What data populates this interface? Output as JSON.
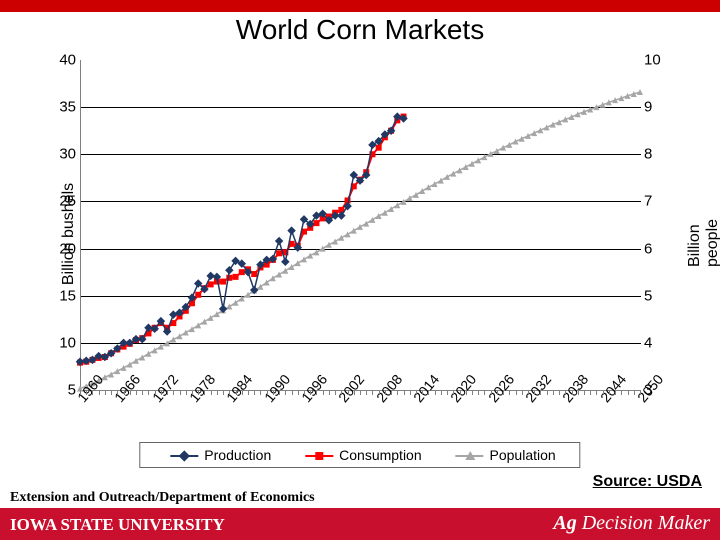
{
  "title": "World Corn Markets",
  "source_label": "Source: USDA",
  "footer": {
    "university": "IOWA STATE UNIVERSITY",
    "dept": "Extension and Outreach/Department of Economics",
    "brand": "Ag Decision Maker"
  },
  "chart": {
    "type": "line-scatter-dual-axis",
    "background_color": "#ffffff",
    "grid_color": "#000000",
    "axis_color": "#808080",
    "left_axis": {
      "label": "Billion bushels",
      "min": 5,
      "max": 40,
      "step": 5,
      "fontsize": 15
    },
    "right_axis": {
      "label": "Billion people",
      "min": 3,
      "max": 10,
      "step": 1,
      "fontsize": 15
    },
    "x_axis": {
      "start": 1960,
      "end": 2050,
      "label_step": 6,
      "tick_step": 1,
      "rotation": -50,
      "fontsize": 14
    },
    "legend": {
      "items": [
        {
          "label": "Production",
          "marker": "diamond",
          "color": "#203864",
          "line_color": "#203864"
        },
        {
          "label": "Consumption",
          "marker": "square",
          "color": "#ff0000",
          "line_color": "#ff0000"
        },
        {
          "label": "Population",
          "marker": "triangle",
          "color": "#a6a6a6",
          "line_color": "#a6a6a6"
        }
      ],
      "border_color": "#666666",
      "fontsize": 14
    },
    "series": {
      "production": {
        "axis": "left",
        "color": "#203864",
        "marker": "diamond",
        "marker_size": 6,
        "line_width": 1.5,
        "data": [
          [
            1960,
            8.0
          ],
          [
            1961,
            8.1
          ],
          [
            1962,
            8.2
          ],
          [
            1963,
            8.6
          ],
          [
            1964,
            8.5
          ],
          [
            1965,
            8.9
          ],
          [
            1966,
            9.4
          ],
          [
            1967,
            10.0
          ],
          [
            1968,
            10.0
          ],
          [
            1969,
            10.4
          ],
          [
            1970,
            10.4
          ],
          [
            1971,
            11.6
          ],
          [
            1972,
            11.5
          ],
          [
            1973,
            12.3
          ],
          [
            1974,
            11.2
          ],
          [
            1975,
            13.0
          ],
          [
            1976,
            13.2
          ],
          [
            1977,
            13.8
          ],
          [
            1978,
            14.8
          ],
          [
            1979,
            16.3
          ],
          [
            1980,
            15.7
          ],
          [
            1981,
            17.1
          ],
          [
            1982,
            17.0
          ],
          [
            1983,
            13.6
          ],
          [
            1984,
            17.7
          ],
          [
            1985,
            18.7
          ],
          [
            1986,
            18.4
          ],
          [
            1987,
            17.5
          ],
          [
            1988,
            15.6
          ],
          [
            1989,
            18.3
          ],
          [
            1990,
            18.8
          ],
          [
            1991,
            18.9
          ],
          [
            1992,
            20.8
          ],
          [
            1993,
            18.6
          ],
          [
            1994,
            21.9
          ],
          [
            1995,
            20.1
          ],
          [
            1996,
            23.1
          ],
          [
            1997,
            22.6
          ],
          [
            1998,
            23.5
          ],
          [
            1999,
            23.7
          ],
          [
            2000,
            23.0
          ],
          [
            2001,
            23.5
          ],
          [
            2002,
            23.5
          ],
          [
            2003,
            24.5
          ],
          [
            2004,
            27.8
          ],
          [
            2005,
            27.2
          ],
          [
            2006,
            27.8
          ],
          [
            2007,
            31.0
          ],
          [
            2008,
            31.4
          ],
          [
            2009,
            32.1
          ],
          [
            2010,
            32.5
          ],
          [
            2011,
            34.0
          ],
          [
            2012,
            33.8
          ]
        ]
      },
      "consumption": {
        "axis": "left",
        "color": "#ff0000",
        "marker": "square",
        "marker_size": 6,
        "line_width": 2,
        "data": [
          [
            1960,
            7.9
          ],
          [
            1961,
            8.0
          ],
          [
            1962,
            8.2
          ],
          [
            1963,
            8.4
          ],
          [
            1964,
            8.5
          ],
          [
            1965,
            8.9
          ],
          [
            1966,
            9.3
          ],
          [
            1967,
            9.6
          ],
          [
            1968,
            9.9
          ],
          [
            1969,
            10.3
          ],
          [
            1970,
            10.5
          ],
          [
            1971,
            11.0
          ],
          [
            1972,
            11.6
          ],
          [
            1973,
            12.1
          ],
          [
            1974,
            11.6
          ],
          [
            1975,
            12.1
          ],
          [
            1976,
            12.8
          ],
          [
            1977,
            13.4
          ],
          [
            1978,
            14.2
          ],
          [
            1979,
            15.1
          ],
          [
            1980,
            15.8
          ],
          [
            1981,
            16.2
          ],
          [
            1982,
            16.5
          ],
          [
            1983,
            16.5
          ],
          [
            1984,
            16.9
          ],
          [
            1985,
            17.0
          ],
          [
            1986,
            17.5
          ],
          [
            1987,
            17.8
          ],
          [
            1988,
            17.3
          ],
          [
            1989,
            18.0
          ],
          [
            1990,
            18.3
          ],
          [
            1991,
            18.8
          ],
          [
            1992,
            19.5
          ],
          [
            1993,
            19.6
          ],
          [
            1994,
            20.5
          ],
          [
            1995,
            20.3
          ],
          [
            1996,
            21.8
          ],
          [
            1997,
            22.2
          ],
          [
            1998,
            22.7
          ],
          [
            1999,
            23.2
          ],
          [
            2000,
            23.4
          ],
          [
            2001,
            23.8
          ],
          [
            2002,
            24.1
          ],
          [
            2003,
            25.1
          ],
          [
            2004,
            26.6
          ],
          [
            2005,
            27.3
          ],
          [
            2006,
            28.1
          ],
          [
            2007,
            30.0
          ],
          [
            2008,
            30.7
          ],
          [
            2009,
            31.8
          ],
          [
            2010,
            32.5
          ],
          [
            2011,
            33.6
          ],
          [
            2012,
            34.0
          ]
        ]
      },
      "population": {
        "axis": "right",
        "color": "#a6a6a6",
        "marker": "triangle",
        "marker_size": 6,
        "line_width": 1.5,
        "data": [
          [
            1960,
            3.03
          ],
          [
            1961,
            3.08
          ],
          [
            1962,
            3.14
          ],
          [
            1963,
            3.2
          ],
          [
            1964,
            3.27
          ],
          [
            1965,
            3.33
          ],
          [
            1966,
            3.4
          ],
          [
            1967,
            3.47
          ],
          [
            1968,
            3.54
          ],
          [
            1969,
            3.62
          ],
          [
            1970,
            3.69
          ],
          [
            1971,
            3.77
          ],
          [
            1972,
            3.84
          ],
          [
            1973,
            3.92
          ],
          [
            1974,
            3.99
          ],
          [
            1975,
            4.07
          ],
          [
            1976,
            4.14
          ],
          [
            1977,
            4.22
          ],
          [
            1978,
            4.29
          ],
          [
            1979,
            4.37
          ],
          [
            1980,
            4.45
          ],
          [
            1981,
            4.53
          ],
          [
            1982,
            4.61
          ],
          [
            1983,
            4.69
          ],
          [
            1984,
            4.77
          ],
          [
            1985,
            4.85
          ],
          [
            1986,
            4.94
          ],
          [
            1987,
            5.02
          ],
          [
            1988,
            5.11
          ],
          [
            1989,
            5.19
          ],
          [
            1990,
            5.28
          ],
          [
            1991,
            5.37
          ],
          [
            1992,
            5.45
          ],
          [
            1993,
            5.53
          ],
          [
            1994,
            5.61
          ],
          [
            1995,
            5.69
          ],
          [
            1996,
            5.77
          ],
          [
            1997,
            5.85
          ],
          [
            1998,
            5.92
          ],
          [
            1999,
            6.0
          ],
          [
            2000,
            6.08
          ],
          [
            2001,
            6.15
          ],
          [
            2002,
            6.23
          ],
          [
            2003,
            6.3
          ],
          [
            2004,
            6.38
          ],
          [
            2005,
            6.46
          ],
          [
            2006,
            6.53
          ],
          [
            2007,
            6.61
          ],
          [
            2008,
            6.69
          ],
          [
            2009,
            6.76
          ],
          [
            2010,
            6.84
          ],
          [
            2011,
            6.92
          ],
          [
            2012,
            6.99
          ],
          [
            2013,
            7.07
          ],
          [
            2014,
            7.14
          ],
          [
            2015,
            7.22
          ],
          [
            2016,
            7.3
          ],
          [
            2017,
            7.37
          ],
          [
            2018,
            7.44
          ],
          [
            2019,
            7.52
          ],
          [
            2020,
            7.59
          ],
          [
            2021,
            7.66
          ],
          [
            2022,
            7.73
          ],
          [
            2023,
            7.8
          ],
          [
            2024,
            7.87
          ],
          [
            2025,
            7.94
          ],
          [
            2026,
            8.01
          ],
          [
            2027,
            8.07
          ],
          [
            2028,
            8.14
          ],
          [
            2029,
            8.2
          ],
          [
            2030,
            8.27
          ],
          [
            2031,
            8.33
          ],
          [
            2032,
            8.39
          ],
          [
            2033,
            8.45
          ],
          [
            2034,
            8.51
          ],
          [
            2035,
            8.57
          ],
          [
            2036,
            8.63
          ],
          [
            2037,
            8.68
          ],
          [
            2038,
            8.74
          ],
          [
            2039,
            8.79
          ],
          [
            2040,
            8.85
          ],
          [
            2041,
            8.9
          ],
          [
            2042,
            8.95
          ],
          [
            2043,
            9.0
          ],
          [
            2044,
            9.05
          ],
          [
            2045,
            9.1
          ],
          [
            2046,
            9.15
          ],
          [
            2047,
            9.19
          ],
          [
            2048,
            9.24
          ],
          [
            2049,
            9.28
          ],
          [
            2050,
            9.32
          ]
        ]
      }
    }
  }
}
